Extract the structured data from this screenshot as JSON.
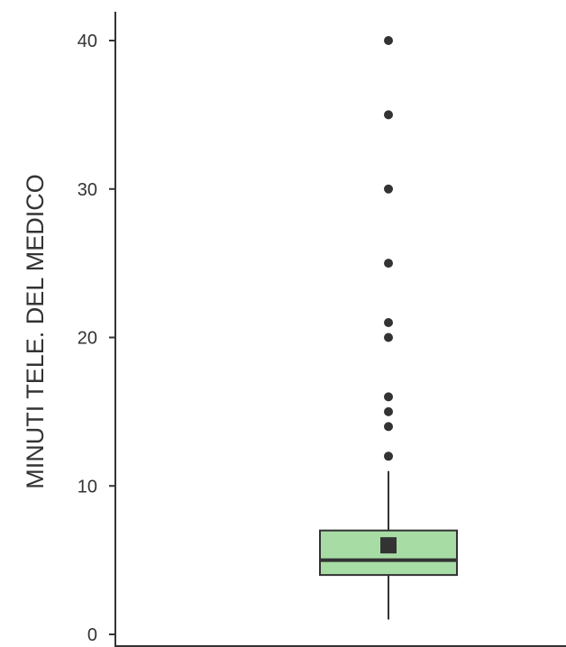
{
  "chart_data": {
    "type": "boxplot",
    "title": "",
    "xlabel": "",
    "ylabel": "MINUTI TELE. DEL MEDICO",
    "ylim": [
      0,
      41
    ],
    "yticks": [
      0,
      10,
      20,
      30,
      40
    ],
    "grid": false,
    "legend": "none",
    "box": {
      "whisker_low": 1,
      "q1": 4,
      "median": 5,
      "q3": 7,
      "whisker_high": 11,
      "mean": 6
    },
    "outliers": [
      12,
      14,
      15,
      16,
      20,
      21,
      25,
      30,
      35,
      40
    ],
    "colors": {
      "box_fill": "#a8dca5",
      "box_stroke": "#333333",
      "points": "#333333",
      "axis": "#333333"
    }
  }
}
